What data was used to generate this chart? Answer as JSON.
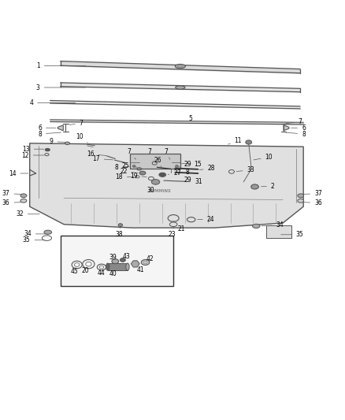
{
  "bg_color": "#ffffff",
  "line_color": "#555555",
  "text_color": "#000000",
  "fig_width": 4.38,
  "fig_height": 5.33,
  "dpi": 100
}
